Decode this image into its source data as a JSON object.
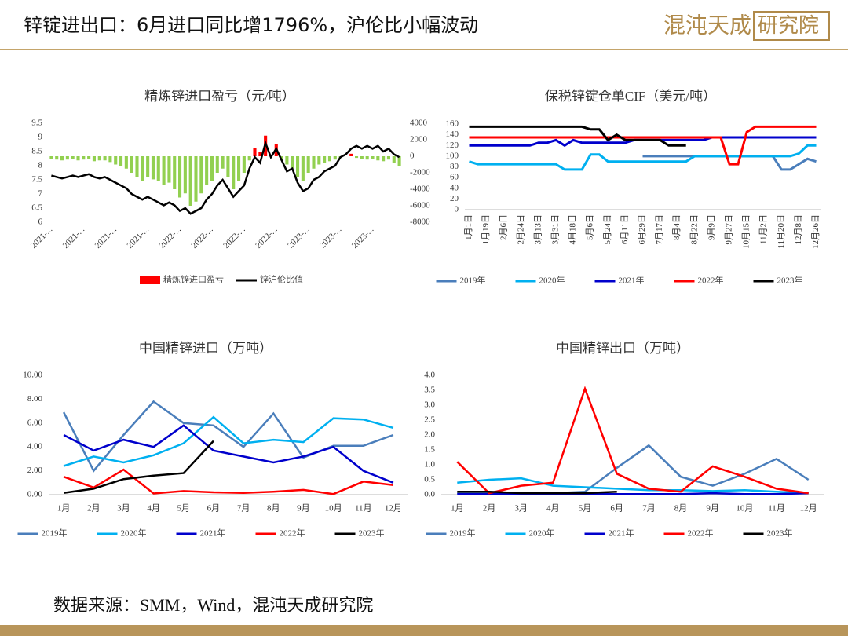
{
  "header": {
    "title": "锌锭进出口：6月进口同比增1796%，沪伦比小幅波动",
    "logo_main": "混沌天成",
    "logo_box": "研究院"
  },
  "footer": {
    "source": "数据来源：SMM，Wind，混沌天成研究院"
  },
  "chart_data": [
    {
      "type": "bar_line",
      "title": "精炼锌进口盈亏（元/吨）",
      "categories": [
        "2021-...",
        null,
        null,
        null,
        null,
        null,
        "2021-...",
        null,
        null,
        null,
        null,
        null,
        "2021-...",
        null,
        null,
        null,
        null,
        null,
        "2021-...",
        null,
        null,
        null,
        null,
        null,
        "2022-...",
        null,
        null,
        null,
        null,
        null,
        "2022-...",
        null,
        null,
        null,
        null,
        null,
        "2022-...",
        null,
        null,
        null,
        null,
        null,
        "2022-...",
        null,
        null,
        null,
        null,
        null,
        "2023-...",
        null,
        null,
        null,
        null,
        null,
        "2023-...",
        null,
        null,
        null,
        null,
        null,
        "2023-...",
        null,
        null,
        null,
        null,
        null
      ],
      "ylim": [
        6,
        9.5
      ],
      "yticks": [
        6,
        6.5,
        7,
        7.5,
        8,
        8.5,
        9,
        9.5
      ],
      "y2lim": [
        -8000,
        4000
      ],
      "y2ticks": [
        -8000,
        -6000,
        -4000,
        -2000,
        0,
        2000,
        4000
      ],
      "series": [
        {
          "name": "精炼锌进口盈亏",
          "type": "bar",
          "axis": "y2",
          "color": "#ff0000",
          "negative_color": "#92d050",
          "values": [
            -300,
            -400,
            -500,
            -400,
            -300,
            -500,
            -400,
            -300,
            -600,
            -500,
            -500,
            -700,
            -1000,
            -1200,
            -1500,
            -2000,
            -2500,
            -3000,
            -2500,
            -2800,
            -3000,
            -3500,
            -3200,
            -4000,
            -5000,
            -4500,
            -6000,
            -5500,
            -4500,
            -3500,
            -3000,
            -2000,
            -1500,
            -2500,
            -4000,
            -3000,
            -2000,
            -500,
            1000,
            500,
            2500,
            0,
            1500,
            -500,
            -1000,
            -1500,
            -2500,
            -3000,
            -2000,
            -1500,
            -1000,
            -800,
            -600,
            -400,
            -200,
            0,
            300,
            -200,
            -300,
            -400,
            -300,
            -500,
            -600,
            -400,
            -800,
            -1200
          ]
        },
        {
          "name": "锌沪伦比值",
          "type": "line",
          "color": "#000000",
          "values": [
            7.65,
            7.6,
            7.55,
            7.6,
            7.65,
            7.6,
            7.65,
            7.7,
            7.6,
            7.55,
            7.6,
            7.5,
            7.4,
            7.3,
            7.2,
            7.0,
            6.9,
            6.8,
            6.9,
            6.8,
            6.7,
            6.6,
            6.7,
            6.6,
            6.4,
            6.5,
            6.3,
            6.4,
            6.5,
            6.8,
            7.0,
            7.3,
            7.5,
            7.2,
            6.9,
            7.1,
            7.3,
            7.9,
            8.3,
            8.1,
            8.8,
            8.3,
            8.6,
            8.2,
            7.8,
            7.9,
            7.4,
            7.1,
            7.2,
            7.5,
            7.6,
            7.8,
            7.9,
            8.0,
            8.3,
            8.4,
            8.6,
            8.7,
            8.6,
            8.7,
            8.6,
            8.7,
            8.5,
            8.6,
            8.4,
            8.3
          ]
        }
      ]
    },
    {
      "type": "line",
      "title": "保税锌锭仓单CIF（美元/吨）",
      "categories": [
        "1月1日",
        null,
        "1月19日",
        null,
        "2月6日",
        null,
        "2月24日",
        null,
        "3月13日",
        null,
        "3月31日",
        null,
        "4月18日",
        null,
        "5月6日",
        null,
        "5月24日",
        null,
        "6月11日",
        null,
        "6月29日",
        null,
        "7月17日",
        null,
        "8月4日",
        null,
        "8月22日",
        null,
        "9月9日",
        null,
        "9月27日",
        null,
        "10月15日",
        null,
        "11月2日",
        null,
        "11月20日",
        null,
        "12月8日",
        null,
        "12月26日"
      ],
      "ylim": [
        0,
        160
      ],
      "yticks": [
        0,
        20,
        40,
        60,
        80,
        100,
        120,
        140,
        160
      ],
      "series": [
        {
          "name": "2019年",
          "color": "#4a7ebb",
          "values": [
            null,
            null,
            null,
            null,
            null,
            null,
            null,
            null,
            null,
            null,
            null,
            null,
            null,
            null,
            null,
            null,
            null,
            null,
            null,
            null,
            100,
            100,
            100,
            100,
            100,
            100,
            100,
            100,
            100,
            100,
            100,
            100,
            100,
            100,
            100,
            100,
            75,
            75,
            85,
            95,
            90
          ]
        },
        {
          "name": "2020年",
          "color": "#00b0f0",
          "values": [
            90,
            85,
            85,
            85,
            85,
            85,
            85,
            85,
            85,
            85,
            85,
            75,
            75,
            75,
            103,
            103,
            90,
            90,
            90,
            90,
            90,
            90,
            90,
            90,
            90,
            90,
            100,
            100,
            100,
            100,
            100,
            100,
            100,
            100,
            100,
            100,
            100,
            100,
            105,
            120,
            120
          ]
        },
        {
          "name": "2021年",
          "color": "#0000cc",
          "values": [
            120,
            120,
            120,
            120,
            120,
            120,
            120,
            120,
            125,
            125,
            130,
            120,
            130,
            125,
            125,
            125,
            125,
            125,
            125,
            130,
            130,
            130,
            130,
            130,
            130,
            130,
            130,
            130,
            135,
            135,
            135,
            135,
            135,
            135,
            135,
            135,
            135,
            135,
            135,
            135,
            135
          ]
        },
        {
          "name": "2022年",
          "color": "#ff0000",
          "values": [
            135,
            135,
            135,
            135,
            135,
            135,
            135,
            135,
            135,
            135,
            135,
            135,
            135,
            135,
            135,
            135,
            135,
            135,
            135,
            135,
            135,
            135,
            135,
            135,
            135,
            135,
            135,
            135,
            135,
            135,
            85,
            85,
            145,
            155,
            155,
            155,
            155,
            155,
            155,
            155,
            155
          ]
        },
        {
          "name": "2023年",
          "color": "#000000",
          "values": [
            155,
            155,
            155,
            155,
            155,
            155,
            155,
            155,
            155,
            155,
            155,
            155,
            155,
            155,
            150,
            150,
            130,
            140,
            130,
            130,
            130,
            130,
            130,
            120,
            120,
            120,
            null,
            null,
            null,
            null,
            null,
            null,
            null,
            null,
            null,
            null,
            null,
            null,
            null,
            null,
            null
          ]
        }
      ]
    },
    {
      "type": "line",
      "title": "中国精锌进口（万吨）",
      "categories": [
        "1月",
        "2月",
        "3月",
        "4月",
        "5月",
        "6月",
        "7月",
        "8月",
        "9月",
        "10月",
        "11月",
        "12月"
      ],
      "ylim": [
        0,
        10
      ],
      "yticks": [
        {
          "value": 0,
          "label": "0.00"
        },
        {
          "value": 2,
          "label": "2.00"
        },
        {
          "value": 4,
          "label": "4.00"
        },
        {
          "value": 6,
          "label": "6.00"
        },
        {
          "value": 8,
          "label": "8.00"
        },
        {
          "value": 10,
          "label": "10.00"
        }
      ],
      "series": [
        {
          "name": "2019年",
          "color": "#4a7ebb",
          "values": [
            6.9,
            2.0,
            5.0,
            7.8,
            6.0,
            5.8,
            4.0,
            6.8,
            3.1,
            4.1,
            4.1,
            5.0
          ]
        },
        {
          "name": "2020年",
          "color": "#00b0f0",
          "values": [
            2.4,
            3.2,
            2.7,
            3.3,
            4.3,
            6.5,
            4.3,
            4.6,
            4.4,
            6.4,
            6.3,
            5.6
          ]
        },
        {
          "name": "2021年",
          "color": "#0000cc",
          "values": [
            5.0,
            3.7,
            4.6,
            4.0,
            5.8,
            3.7,
            3.2,
            2.7,
            3.2,
            4.0,
            2.0,
            1.0
          ]
        },
        {
          "name": "2022年",
          "color": "#ff0000",
          "values": [
            1.5,
            0.6,
            2.1,
            0.1,
            0.3,
            0.2,
            0.15,
            0.25,
            0.4,
            0.05,
            1.1,
            0.8
          ]
        },
        {
          "name": "2023年",
          "color": "#000000",
          "values": [
            0.15,
            0.5,
            1.3,
            1.6,
            1.8,
            4.5,
            null,
            null,
            null,
            null,
            null,
            null
          ]
        }
      ]
    },
    {
      "type": "line",
      "title": "中国精锌出口（万吨）",
      "categories": [
        "1月",
        "2月",
        "3月",
        "4月",
        "5月",
        "6月",
        "7月",
        "8月",
        "9月",
        "10月",
        "11月",
        "12月"
      ],
      "ylim": [
        0,
        4
      ],
      "yticks": [
        {
          "value": 0,
          "label": "0.0"
        },
        0.5,
        {
          "value": 1,
          "label": "1.0"
        },
        1.5,
        {
          "value": 2,
          "label": "2.0"
        },
        2.5,
        {
          "value": 3,
          "label": "3.0"
        },
        3.5,
        {
          "value": 4,
          "label": "4.0"
        }
      ],
      "series": [
        {
          "name": "2019年",
          "color": "#4a7ebb",
          "values": [
            0.05,
            0.05,
            0.05,
            0.05,
            0.1,
            0.9,
            1.65,
            0.6,
            0.3,
            0.7,
            1.2,
            0.5
          ]
        },
        {
          "name": "2020年",
          "color": "#00b0f0",
          "values": [
            0.4,
            0.5,
            0.55,
            0.3,
            0.25,
            0.2,
            0.15,
            0.15,
            0.12,
            0.15,
            0.1,
            0.05
          ]
        },
        {
          "name": "2021年",
          "color": "#0000cc",
          "values": [
            0.02,
            0.02,
            0.02,
            0.02,
            0.02,
            0.02,
            0.02,
            0.02,
            0.05,
            0.02,
            0.02,
            0.05
          ]
        },
        {
          "name": "2022年",
          "color": "#ff0000",
          "values": [
            1.1,
            0.05,
            0.3,
            0.4,
            3.55,
            0.7,
            0.2,
            0.1,
            0.95,
            0.6,
            0.2,
            0.05
          ]
        },
        {
          "name": "2023年",
          "color": "#000000",
          "values": [
            0.1,
            0.1,
            0.05,
            0.05,
            0.05,
            0.1,
            null,
            null,
            null,
            null,
            null,
            null
          ]
        }
      ]
    }
  ]
}
